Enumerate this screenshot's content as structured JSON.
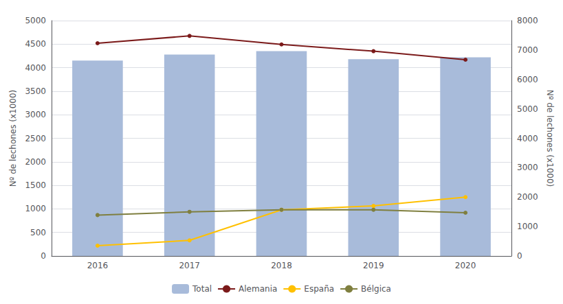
{
  "chart_data": {
    "type": "bar",
    "categories": [
      "2016",
      "2017",
      "2018",
      "2019",
      "2020"
    ],
    "ylabel": "Nº de lechones (x1000)",
    "y2label": "Nº de lechones (x1000)",
    "ylim": [
      0,
      5000
    ],
    "yticks": [
      0,
      500,
      1000,
      1500,
      2000,
      2500,
      3000,
      3500,
      4000,
      4500,
      5000
    ],
    "y2lim": [
      0,
      8000
    ],
    "y2ticks": [
      0,
      1000,
      2000,
      3000,
      4000,
      5000,
      6000,
      7000,
      8000
    ],
    "grid": true,
    "legend": "bottom",
    "series": [
      {
        "name": "Total",
        "type": "bar",
        "color": "#a8bbda",
        "values": [
          4150,
          4280,
          4350,
          4180,
          4220
        ]
      },
      {
        "name": "Alemania",
        "type": "line",
        "axis": "y2",
        "marker": "circle",
        "color": "#7b1a1a",
        "values": [
          7230,
          7480,
          7190,
          6960,
          6670
        ]
      },
      {
        "name": "España",
        "type": "line",
        "axis": "y2",
        "marker": "circle",
        "color": "#ffc000",
        "values": [
          350,
          530,
          1570,
          1700,
          2000
        ]
      },
      {
        "name": "Bélgica",
        "type": "line",
        "axis": "y2",
        "marker": "circle",
        "color": "#7f7f3f",
        "values": [
          1390,
          1500,
          1570,
          1570,
          1470
        ]
      }
    ]
  }
}
